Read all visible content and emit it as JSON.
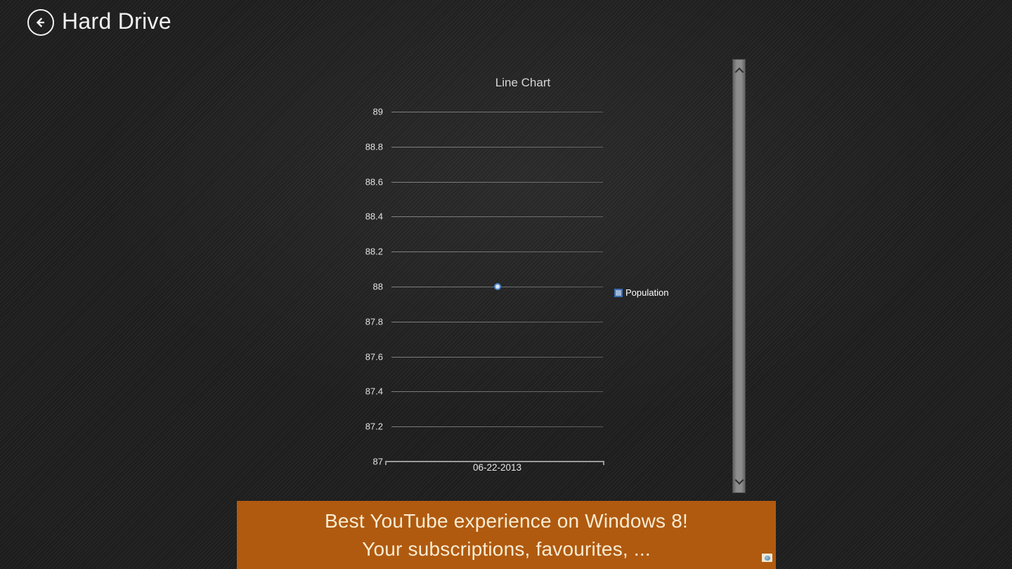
{
  "app": {
    "title": "Hard Drive"
  },
  "chart_data": {
    "type": "line",
    "title": "Line Chart",
    "categories": [
      "06-22-2013"
    ],
    "series": [
      {
        "name": "Population",
        "values": [
          88
        ]
      }
    ],
    "ylim": [
      87,
      89
    ],
    "ytick_labels": [
      "89",
      "88.8",
      "88.6",
      "88.4",
      "88.2",
      "88",
      "87.8",
      "87.6",
      "87.4",
      "87.2",
      "87"
    ],
    "grid": true,
    "legend_position": "right",
    "point_color": "#4a86c8",
    "point_fill": "#d6e6f4",
    "legend_marker_color": "#3b6db3",
    "legend_marker_fill": "#9fb6d6"
  },
  "scrollbar": {
    "up_icon": "chevron-up",
    "down_icon": "chevron-down"
  },
  "ad_banner": {
    "line1": "Best YouTube experience on Windows 8!",
    "line2": "Your subscriptions, favourites, ...",
    "background_color": "#b05a10",
    "text_color": "#f7ecd2",
    "adchoices_icon": "adchoices"
  }
}
